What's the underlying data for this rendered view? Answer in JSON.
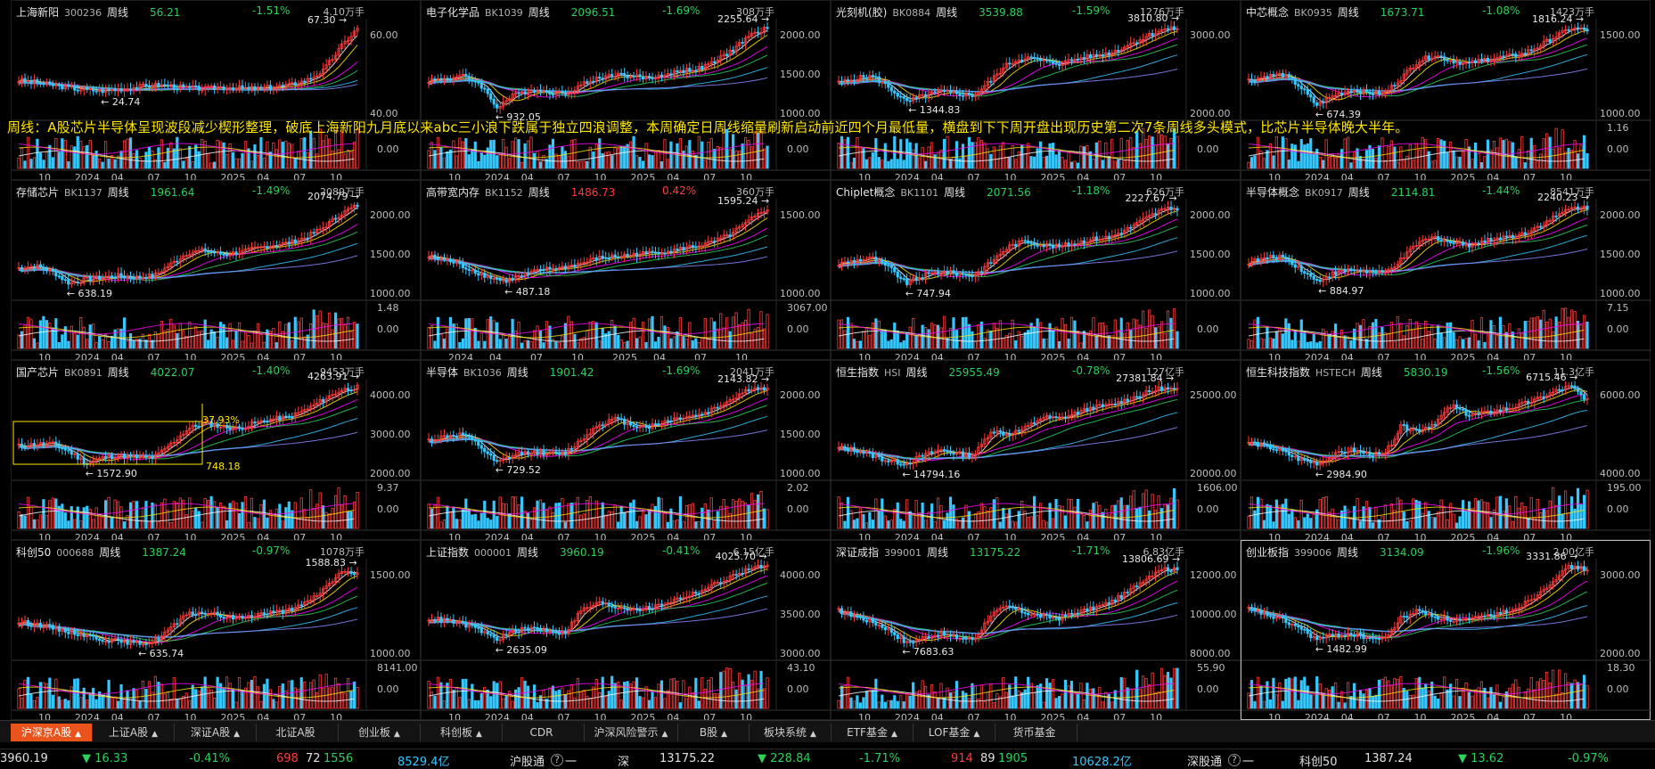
{
  "annotation": "周线：A股芯片半导体呈现波段减少楔形整理，破底上海新阳九月底以来abc三小浪下跌属于独立四浪调整，本周确定日周线缩量刷新启动前近四个月最低量，横盘到下下周开盘出现历史第二次7条周线多头模式，比芯片半导体晚大半年。",
  "panels": [
    {
      "name": "上海新阳",
      "code": "300236",
      "period": "周线",
      "price": "56.21",
      "change": "-1.51%",
      "dir": "dn",
      "vol": "4.10万手",
      "high": "67.30",
      "low": "24.74",
      "yticks": [
        "60.00",
        "40.00"
      ],
      "vticks": [
        "",
        "0.00"
      ],
      "xticks": [
        "10",
        "2024",
        "04",
        "07",
        "10",
        "2025",
        "04",
        "07",
        "10"
      ],
      "trend": [
        0.38,
        0.36,
        0.33,
        0.3,
        0.28,
        0.27,
        0.29,
        0.31,
        0.33,
        0.32,
        0.3,
        0.29,
        0.31,
        0.3,
        0.29,
        0.31,
        0.33,
        0.38,
        0.48,
        0.72,
        0.92
      ]
    },
    {
      "name": "电子化学品",
      "code": "BK1039",
      "period": "周线",
      "price": "2096.51",
      "change": "-1.69%",
      "dir": "dn",
      "vol": "308万手",
      "high": "2255.64",
      "low": "932.05",
      "yticks": [
        "2000.00",
        "1500.00",
        "1000.00"
      ],
      "vticks": [
        "",
        "0.00"
      ],
      "xticks": [
        "10",
        "2024",
        "04",
        "07",
        "10",
        "2025",
        "04",
        "07",
        "10"
      ],
      "trend": [
        0.38,
        0.4,
        0.42,
        0.35,
        0.1,
        0.22,
        0.28,
        0.26,
        0.24,
        0.33,
        0.4,
        0.44,
        0.42,
        0.4,
        0.44,
        0.48,
        0.5,
        0.58,
        0.7,
        0.85,
        0.92
      ]
    },
    {
      "name": "光刻机(胶)",
      "code": "BK0884",
      "period": "周线",
      "price": "3539.88",
      "change": "-1.59%",
      "dir": "dn",
      "vol": "1276万手",
      "high": "3810.80",
      "low": "1344.83",
      "yticks": [
        "3000.00",
        "2000.00"
      ],
      "vticks": [
        "",
        "0.00"
      ],
      "xticks": [
        "10",
        "2024",
        "04",
        "07",
        "10",
        "2025",
        "04",
        "07",
        "10"
      ],
      "trend": [
        0.35,
        0.4,
        0.42,
        0.3,
        0.15,
        0.22,
        0.26,
        0.24,
        0.22,
        0.38,
        0.55,
        0.62,
        0.58,
        0.55,
        0.6,
        0.63,
        0.66,
        0.74,
        0.82,
        0.9,
        0.92
      ]
    },
    {
      "name": "中芯概念",
      "code": "BK0935",
      "period": "周线",
      "price": "1673.71",
      "change": "-1.08%",
      "dir": "dn",
      "vol": "1423万手",
      "high": "1816.24",
      "low": "674.39",
      "yticks": [
        "1500.00",
        "1000.00"
      ],
      "vticks": [
        "1.16",
        "0.00"
      ],
      "xticks": [
        "10",
        "2024",
        "04",
        "07",
        "10",
        "2025",
        "04",
        "07",
        "10"
      ],
      "trend": [
        0.38,
        0.42,
        0.44,
        0.32,
        0.12,
        0.22,
        0.28,
        0.25,
        0.24,
        0.4,
        0.58,
        0.64,
        0.58,
        0.55,
        0.6,
        0.62,
        0.64,
        0.72,
        0.82,
        0.92,
        0.9
      ]
    },
    {
      "name": "存储芯片",
      "code": "BK1137",
      "period": "周线",
      "price": "1961.64",
      "change": "-1.49%",
      "dir": "dn",
      "vol": "2089万手",
      "high": "2074.79",
      "low": "638.19",
      "yticks": [
        "2000.00",
        "1500.00",
        "1000.00"
      ],
      "vticks": [
        "1.48",
        "0.00"
      ],
      "xticks": [
        "10",
        "2024",
        "04",
        "07",
        "10",
        "2025",
        "04",
        "07",
        "10"
      ],
      "trend": [
        0.3,
        0.32,
        0.26,
        0.14,
        0.18,
        0.2,
        0.22,
        0.2,
        0.22,
        0.34,
        0.46,
        0.48,
        0.44,
        0.46,
        0.5,
        0.54,
        0.56,
        0.62,
        0.72,
        0.86,
        0.95
      ]
    },
    {
      "name": "高带宽内存",
      "code": "BK1152",
      "period": "周线",
      "price": "1486.73",
      "change": "0.42%",
      "dir": "up",
      "vol": "360万手",
      "high": "1595.24",
      "low": "487.18",
      "yticks": [
        "1500.00",
        "1000.00"
      ],
      "vticks": [
        "3067.00",
        "0.00"
      ],
      "xticks": [
        "2024",
        "04",
        "07",
        "10",
        "2025",
        "04",
        "07",
        "10"
      ],
      "trend": [
        0.42,
        0.38,
        0.3,
        0.22,
        0.16,
        0.22,
        0.28,
        0.3,
        0.34,
        0.4,
        0.42,
        0.44,
        0.46,
        0.48,
        0.52,
        0.56,
        0.64,
        0.78,
        0.92
      ]
    },
    {
      "name": "Chiplet概念",
      "code": "BK1101",
      "period": "周线",
      "price": "2071.56",
      "change": "-1.18%",
      "dir": "dn",
      "vol": "626万手",
      "high": "2227.67",
      "low": "747.94",
      "yticks": [
        "2000.00",
        "1500.00",
        "1000.00"
      ],
      "vticks": [
        "",
        "0.00"
      ],
      "xticks": [
        "10",
        "2024",
        "04",
        "07",
        "10",
        "2025",
        "04",
        "07",
        "10"
      ],
      "trend": [
        0.34,
        0.38,
        0.4,
        0.3,
        0.14,
        0.22,
        0.26,
        0.24,
        0.22,
        0.36,
        0.52,
        0.58,
        0.54,
        0.52,
        0.56,
        0.6,
        0.62,
        0.7,
        0.8,
        0.9,
        0.92
      ]
    },
    {
      "name": "半导体概念",
      "code": "BK0917",
      "period": "周线",
      "price": "2114.81",
      "change": "-1.44%",
      "dir": "dn",
      "vol": "8541万手",
      "high": "2240.23",
      "low": "884.97",
      "yticks": [
        "2000.00",
        "1500.00",
        "1000.00"
      ],
      "vticks": [
        "7.15",
        "0.00"
      ],
      "xticks": [
        "10",
        "2024",
        "04",
        "07",
        "10",
        "2025",
        "04",
        "07",
        "10"
      ],
      "trend": [
        0.36,
        0.4,
        0.42,
        0.3,
        0.16,
        0.24,
        0.28,
        0.26,
        0.24,
        0.38,
        0.56,
        0.62,
        0.56,
        0.54,
        0.58,
        0.62,
        0.64,
        0.72,
        0.82,
        0.92,
        0.93
      ]
    },
    {
      "name": "国产芯片",
      "code": "BK0891",
      "period": "周线",
      "price": "4022.07",
      "change": "-1.40%",
      "dir": "dn",
      "vol": "9453万手",
      "high": "4263.91",
      "low": "1572.90",
      "yticks": [
        "4000.00",
        "3000.00",
        "2000.00"
      ],
      "vticks": [
        "9.37",
        "0.00"
      ],
      "xticks": [
        "10",
        "2024",
        "04",
        "07",
        "10",
        "2025",
        "04",
        "07",
        "10"
      ],
      "trend": [
        0.32,
        0.34,
        0.34,
        0.26,
        0.14,
        0.2,
        0.22,
        0.2,
        0.2,
        0.34,
        0.5,
        0.56,
        0.52,
        0.5,
        0.56,
        0.6,
        0.62,
        0.7,
        0.8,
        0.9,
        0.93
      ]
    },
    {
      "name": "半导体",
      "code": "BK1036",
      "period": "周线",
      "price": "1901.42",
      "change": "-1.69%",
      "dir": "dn",
      "vol": "2041万手",
      "high": "2143.82",
      "low": "729.52",
      "yticks": [
        "2000.00",
        "1500.00",
        "1000.00"
      ],
      "vticks": [
        "2.02",
        "0.00"
      ],
      "xticks": [
        "10",
        "2024",
        "04",
        "07",
        "10",
        "2025",
        "04",
        "07",
        "10"
      ],
      "trend": [
        0.38,
        0.42,
        0.44,
        0.32,
        0.14,
        0.22,
        0.26,
        0.24,
        0.24,
        0.38,
        0.54,
        0.6,
        0.54,
        0.52,
        0.58,
        0.62,
        0.64,
        0.72,
        0.82,
        0.92,
        0.9
      ]
    },
    {
      "name": "恒生指数",
      "code": "HSI",
      "period": "周线",
      "price": "25955.49",
      "change": "-0.78%",
      "dir": "dn",
      "vol": "127亿手",
      "high": "27381.84",
      "low": "14794.16",
      "yticks": [
        "25000.00",
        "20000.00"
      ],
      "vticks": [
        "1606.00",
        "0.00"
      ],
      "xticks": [
        "10",
        "2024",
        "04",
        "07",
        "10",
        "2025",
        "04",
        "07",
        "10"
      ],
      "trend": [
        0.3,
        0.28,
        0.22,
        0.16,
        0.14,
        0.22,
        0.28,
        0.24,
        0.22,
        0.48,
        0.44,
        0.5,
        0.62,
        0.6,
        0.66,
        0.72,
        0.74,
        0.8,
        0.86,
        0.92,
        0.9
      ]
    },
    {
      "name": "恒生科技指数",
      "code": "HSTECH",
      "period": "周线",
      "price": "5830.19",
      "change": "-1.56%",
      "dir": "dn",
      "vol": "11.3亿手",
      "high": "6715.46",
      "low": "2984.90",
      "yticks": [
        "6000.00",
        "4000.00"
      ],
      "vticks": [
        "195.00",
        "0.00"
      ],
      "xticks": [
        "10",
        "2024",
        "04",
        "07",
        "10",
        "2025",
        "04",
        "07",
        "10"
      ],
      "trend": [
        0.36,
        0.32,
        0.26,
        0.18,
        0.14,
        0.22,
        0.28,
        0.24,
        0.22,
        0.52,
        0.48,
        0.56,
        0.74,
        0.64,
        0.66,
        0.7,
        0.74,
        0.8,
        0.88,
        0.94,
        0.8
      ]
    },
    {
      "name": "科创50",
      "code": "000688",
      "period": "周线",
      "price": "1387.24",
      "change": "-0.97%",
      "dir": "dn",
      "vol": "1078万手",
      "high": "1588.83",
      "low": "635.74",
      "yticks": [
        "1500.00",
        "1000.00"
      ],
      "vticks": [
        "8141.00",
        "0.00"
      ],
      "xticks": [
        "10",
        "2024",
        "04",
        "07",
        "10",
        "2025",
        "04",
        "07",
        "10"
      ],
      "trend": [
        0.36,
        0.34,
        0.3,
        0.26,
        0.22,
        0.18,
        0.16,
        0.14,
        0.16,
        0.3,
        0.44,
        0.46,
        0.42,
        0.4,
        0.44,
        0.46,
        0.48,
        0.56,
        0.7,
        0.88,
        0.86
      ]
    },
    {
      "name": "上证指数",
      "code": "000001",
      "period": "周线",
      "price": "3960.19",
      "change": "-0.41%",
      "dir": "dn",
      "vol": "6.15亿手",
      "high": "4025.70",
      "low": "2635.09",
      "yticks": [
        "4000.00",
        "3500.00",
        "3000.00"
      ],
      "vticks": [
        "43.10",
        "0.00"
      ],
      "xticks": [
        "10",
        "2024",
        "04",
        "07",
        "10",
        "2025",
        "04",
        "07",
        "10"
      ],
      "trend": [
        0.4,
        0.38,
        0.34,
        0.28,
        0.18,
        0.26,
        0.3,
        0.28,
        0.24,
        0.48,
        0.56,
        0.52,
        0.5,
        0.5,
        0.56,
        0.62,
        0.68,
        0.76,
        0.84,
        0.92,
        0.94
      ]
    },
    {
      "name": "深证成指",
      "code": "399001",
      "period": "周线",
      "price": "13175.22",
      "change": "-1.71%",
      "dir": "dn",
      "vol": "6.83亿手",
      "high": "13806.69",
      "low": "7683.63",
      "yticks": [
        "12000.00",
        "10000.00",
        "8000.00"
      ],
      "vticks": [
        "55.90",
        "0.00"
      ],
      "xticks": [
        "10",
        "2024",
        "04",
        "07",
        "10",
        "2025",
        "04",
        "07",
        "10"
      ],
      "trend": [
        0.48,
        0.42,
        0.36,
        0.28,
        0.14,
        0.2,
        0.24,
        0.2,
        0.18,
        0.44,
        0.52,
        0.46,
        0.42,
        0.4,
        0.46,
        0.5,
        0.56,
        0.66,
        0.8,
        0.92,
        0.9
      ]
    },
    {
      "name": "创业板指",
      "code": "399006",
      "period": "周线",
      "price": "3134.09",
      "change": "-1.96%",
      "dir": "dn",
      "vol": "2.00亿手",
      "high": "3331.86",
      "low": "1482.99",
      "yticks": [
        "3000.00",
        "2000.00"
      ],
      "vticks": [
        "18.30",
        "0.00"
      ],
      "xticks": [
        "10",
        "2024",
        "04",
        "07",
        "10",
        "2025",
        "04",
        "07",
        "10"
      ],
      "trend": [
        0.5,
        0.44,
        0.38,
        0.3,
        0.18,
        0.22,
        0.24,
        0.2,
        0.18,
        0.4,
        0.48,
        0.42,
        0.38,
        0.38,
        0.42,
        0.46,
        0.52,
        0.64,
        0.8,
        0.94,
        0.9
      ]
    }
  ],
  "tabs": [
    {
      "label": "沪深京A股",
      "caret": "▲",
      "active": true
    },
    {
      "label": "上证A股",
      "caret": "▲"
    },
    {
      "label": "深证A股",
      "caret": "▲"
    },
    {
      "label": "北证A股",
      "caret": ""
    },
    {
      "label": "创业板",
      "caret": "▲"
    },
    {
      "label": "科创板",
      "caret": "▲"
    },
    {
      "label": "CDR",
      "caret": ""
    },
    {
      "label": "沪深风险警示",
      "caret": "▲"
    },
    {
      "label": "B股",
      "caret": "▲"
    },
    {
      "label": "板块系统",
      "caret": "▲"
    },
    {
      "label": "ETF基金",
      "caret": "▲"
    },
    {
      "label": "LOF基金",
      "caret": "▲"
    },
    {
      "label": "货币基金",
      "caret": ""
    }
  ],
  "status": {
    "sh_index": "3960.19",
    "sh_change": "▼ 16.33",
    "sh_pct": "-0.41%",
    "sh_up": "698",
    "sh_flat": "72",
    "sh_down": "1556",
    "sh_amount": "8529.4亿",
    "hgt_label": "沪股通",
    "hgt_icon": "?",
    "hgt_value": "一",
    "sz_label": "深",
    "sz_index": "13175.22",
    "sz_change": "▼ 228.84",
    "sz_pct": "-1.71%",
    "sz_up": "914",
    "sz_flat": "89",
    "sz_down": "1905",
    "sz_amount": "10628.2亿",
    "sgt_label": "深股通",
    "sgt_icon": "?",
    "sgt_value": "一",
    "kc_label": "科创50",
    "kc_index": "1387.24",
    "kc_change": "▼ 13.62",
    "kc_pct": "-0.97%"
  },
  "colors": {
    "up": "#ff3b3b",
    "down": "#2ad15a",
    "volume_cyan": "#35c8ff",
    "accent_tab": "#e8541c",
    "annotation": "#ffe600"
  }
}
